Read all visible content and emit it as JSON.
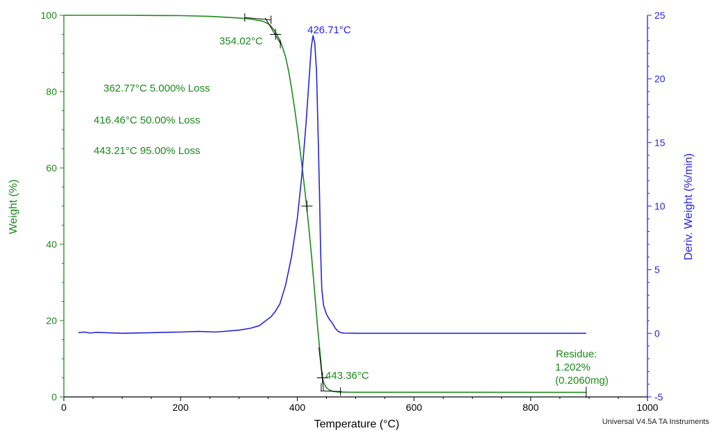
{
  "chart_data": {
    "type": "line",
    "xlabel": "Temperature (°C)",
    "ylabel_left": "Weight (%)",
    "ylabel_right": "Deriv. Weight (%/min)",
    "xlim": [
      0,
      1000
    ],
    "ylim_left": [
      0,
      100
    ],
    "ylim_right": [
      -5,
      25
    ],
    "x_ticks": [
      0,
      200,
      400,
      600,
      800,
      1000
    ],
    "y_left_ticks": [
      0,
      20,
      40,
      60,
      80,
      100
    ],
    "y_right_ticks": [
      -5,
      0,
      5,
      10,
      15,
      20,
      25
    ],
    "grid": false,
    "colors": {
      "weight": "#1a8a1a",
      "deriv": "#2323e0",
      "annotation": "#000000"
    },
    "series": [
      {
        "axis": "left",
        "x": [
          0,
          50,
          100,
          150,
          200,
          250,
          300,
          320,
          340,
          350,
          354,
          360,
          365,
          370,
          375,
          380,
          385,
          390,
          395,
          400,
          405,
          410,
          416,
          420,
          425,
          430,
          435,
          440,
          443,
          446,
          450,
          455,
          460,
          470,
          480,
          500,
          600,
          700,
          800,
          895
        ],
        "values": [
          100,
          100,
          100,
          99.95,
          99.9,
          99.7,
          99.3,
          99,
          98.5,
          97.8,
          97.3,
          96.2,
          95,
          93.5,
          91.5,
          89,
          85.5,
          81,
          76,
          70.5,
          64.5,
          58,
          50,
          44,
          36,
          27,
          18,
          10,
          5,
          3.4,
          2.4,
          1.8,
          1.5,
          1.3,
          1.25,
          1.22,
          1.21,
          1.21,
          1.2,
          1.2
        ]
      },
      {
        "axis": "right",
        "x": [
          25,
          35,
          45,
          55,
          100,
          150,
          200,
          230,
          260,
          300,
          320,
          335,
          345,
          355,
          362,
          370,
          380,
          390,
          400,
          408,
          415,
          420,
          424,
          427,
          430,
          433,
          436,
          438,
          440,
          442,
          445,
          450,
          455,
          460,
          465,
          470,
          475,
          480,
          500,
          600,
          700,
          800,
          895
        ],
        "values": [
          0.05,
          0.1,
          0.02,
          0.08,
          0,
          0.05,
          0.1,
          0.15,
          0.1,
          0.25,
          0.4,
          0.6,
          0.95,
          1.3,
          1.7,
          2.3,
          3.8,
          6.0,
          9.0,
          12.5,
          16.5,
          19.8,
          22.5,
          23.4,
          22.8,
          20.5,
          15,
          11,
          6.5,
          3.5,
          2.2,
          1.5,
          1.1,
          0.8,
          0.4,
          0.15,
          0.05,
          0.02,
          0,
          0,
          0,
          0,
          0
        ]
      }
    ],
    "annotations": [
      {
        "text": "354.02°C",
        "color": "weight"
      },
      {
        "text": "426.71°C",
        "color": "deriv"
      },
      {
        "text": "362.77°C 5.000% Loss",
        "color": "weight"
      },
      {
        "text": "416.46°C 50.00% Loss",
        "color": "weight"
      },
      {
        "text": "443.21°C 95.00% Loss",
        "color": "weight"
      },
      {
        "text": "443.36°C",
        "color": "weight"
      },
      {
        "text": "Residue:",
        "color": "weight"
      },
      {
        "text": "1.202%",
        "color": "weight"
      },
      {
        "text": "(0.2060mg)",
        "color": "weight"
      }
    ],
    "markers": [
      {
        "x": 362.77,
        "y": 95
      },
      {
        "x": 416.46,
        "y": 50
      },
      {
        "x": 443.21,
        "y": 5
      }
    ],
    "credit": "Universal V4.5A TA Instruments"
  }
}
